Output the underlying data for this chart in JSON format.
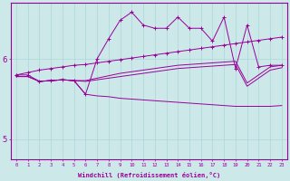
{
  "background_color": "#cce8e8",
  "line_color": "#990099",
  "grid_color": "#aad8d8",
  "xlabel": "Windchill (Refroidissement éolien,°C)",
  "xlim": [
    -0.5,
    23.5
  ],
  "ylim": [
    4.75,
    6.7
  ],
  "yticks": [
    5,
    6
  ],
  "zigzag_x": [
    0,
    1,
    2,
    3,
    4,
    5,
    6,
    7,
    8,
    9,
    10,
    11,
    12,
    13,
    14,
    15,
    16,
    17,
    18,
    19,
    20,
    21,
    22,
    23
  ],
  "zigzag_y": [
    5.8,
    5.8,
    5.72,
    5.73,
    5.74,
    5.73,
    5.56,
    6.0,
    6.25,
    6.48,
    6.58,
    6.42,
    6.38,
    6.38,
    6.52,
    6.38,
    6.38,
    6.22,
    6.52,
    5.88,
    6.42,
    5.9,
    5.92,
    5.92
  ],
  "grad1_x": [
    0,
    1,
    2,
    3,
    4,
    5,
    6,
    7,
    8,
    9,
    10,
    11,
    12,
    13,
    14,
    15,
    16,
    17,
    18,
    19,
    20,
    21,
    22,
    23
  ],
  "grad1_y": [
    5.8,
    5.83,
    5.86,
    5.88,
    5.9,
    5.92,
    5.93,
    5.95,
    5.97,
    5.99,
    6.01,
    6.03,
    6.05,
    6.07,
    6.09,
    6.11,
    6.13,
    6.15,
    6.17,
    6.19,
    6.21,
    6.23,
    6.25,
    6.27
  ],
  "grad2_x": [
    0,
    1,
    2,
    3,
    4,
    5,
    6,
    7,
    8,
    9,
    10,
    11,
    12,
    13,
    14,
    15,
    16,
    17,
    18,
    19,
    20,
    21,
    22,
    23
  ],
  "grad2_y": [
    5.78,
    5.78,
    5.72,
    5.73,
    5.74,
    5.73,
    5.73,
    5.76,
    5.79,
    5.82,
    5.84,
    5.86,
    5.88,
    5.9,
    5.92,
    5.93,
    5.94,
    5.95,
    5.96,
    5.97,
    5.7,
    5.8,
    5.9,
    5.92
  ],
  "grad3_x": [
    0,
    1,
    2,
    3,
    4,
    5,
    6,
    7,
    8,
    9,
    10,
    11,
    12,
    13,
    14,
    15,
    16,
    17,
    18,
    19,
    20,
    21,
    22,
    23
  ],
  "grad3_y": [
    5.78,
    5.78,
    5.72,
    5.73,
    5.74,
    5.73,
    5.72,
    5.74,
    5.76,
    5.78,
    5.8,
    5.82,
    5.84,
    5.86,
    5.88,
    5.89,
    5.9,
    5.91,
    5.92,
    5.93,
    5.66,
    5.76,
    5.86,
    5.89
  ],
  "desc_x": [
    2,
    3,
    4,
    5,
    6,
    7,
    8,
    9,
    10,
    11,
    12,
    13,
    14,
    15,
    16,
    17,
    18,
    19,
    20,
    21,
    22,
    23
  ],
  "desc_y": [
    5.72,
    5.73,
    5.74,
    5.73,
    5.56,
    5.54,
    5.53,
    5.51,
    5.5,
    5.49,
    5.48,
    5.47,
    5.46,
    5.45,
    5.44,
    5.43,
    5.42,
    5.41,
    5.41,
    5.41,
    5.41,
    5.42
  ]
}
